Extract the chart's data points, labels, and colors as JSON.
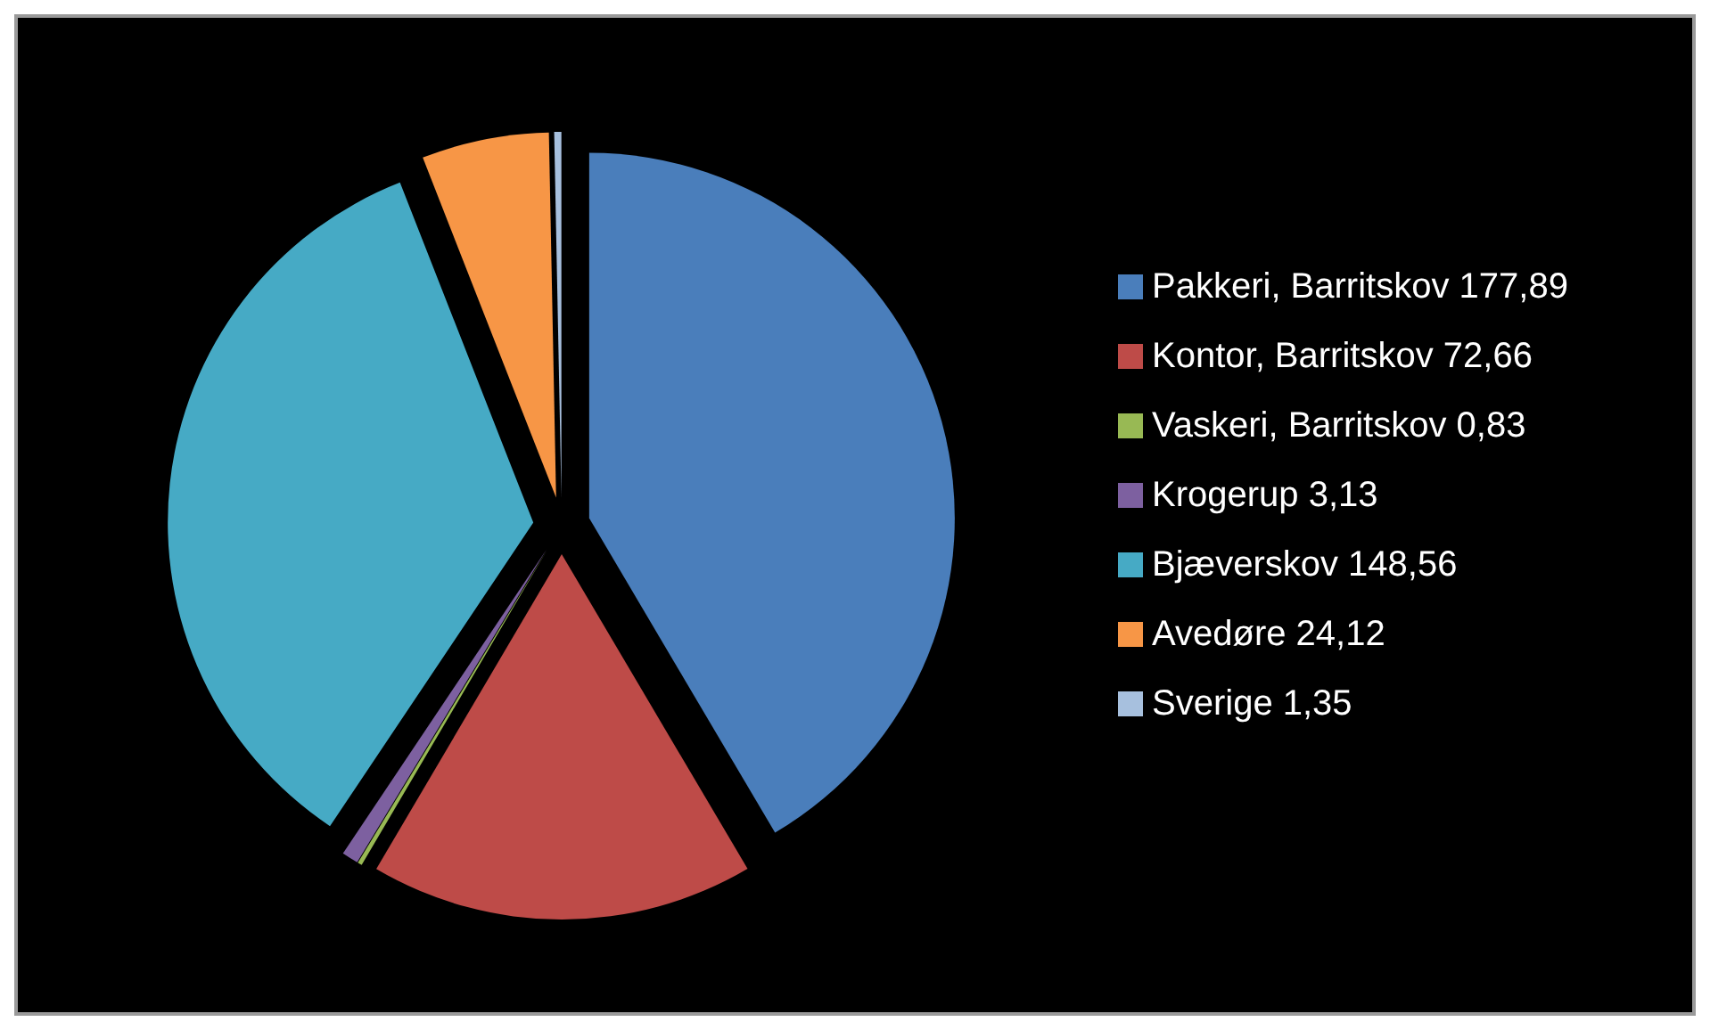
{
  "chart_data": {
    "type": "pie",
    "categories": [
      "Pakkeri, Barritskov",
      "Kontor, Barritskov",
      "Vaskeri, Barritskov",
      "Krogerup",
      "Bjæverskov",
      "Avedøre",
      "Sverige"
    ],
    "values": [
      177.89,
      72.66,
      0.83,
      3.13,
      148.56,
      24.12,
      1.35
    ],
    "value_labels": [
      "177,89",
      "72,66",
      "0,83",
      "3,13",
      "148,56",
      "24,12",
      "1,35"
    ],
    "colors": [
      "#4a7ebb",
      "#be4b48",
      "#98b954",
      "#7d60a0",
      "#46aac5",
      "#f79646",
      "#a7c0de"
    ],
    "legend": "right"
  }
}
